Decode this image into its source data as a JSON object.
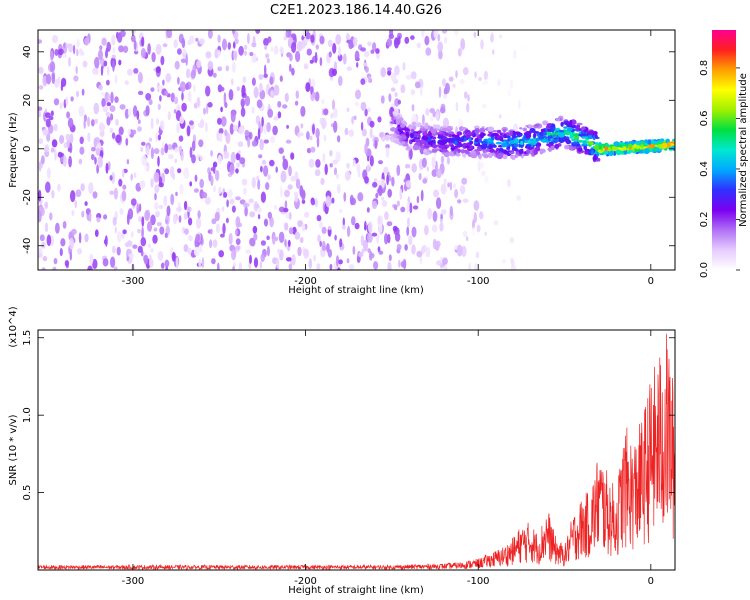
{
  "title": "C2E1.2023.186.14.40.G26",
  "chart_data": [
    {
      "type": "heatmap",
      "xlabel": "Height of straight line (km)",
      "ylabel": "Frequency (Hz)",
      "xlim": [
        -355,
        14
      ],
      "ylim": [
        -50,
        49
      ],
      "xticks": [
        -300,
        -200,
        -100,
        0
      ],
      "xtick_labels": [
        "-300",
        "-200",
        "-100",
        "0"
      ],
      "yticks": [
        40,
        20,
        0,
        -20,
        -40
      ],
      "ytick_labels": [
        "40",
        "20",
        "0",
        "-20",
        "-40"
      ],
      "colorbar": {
        "label": "Normalized spectral amplitude",
        "range": [
          0,
          0.95
        ],
        "ticks": [
          0.0,
          0.2,
          0.4,
          0.6,
          0.8
        ],
        "tick_labels": [
          "0.0",
          "0.2",
          "0.4",
          "0.6",
          "0.8"
        ],
        "colors": [
          "#ffffff",
          "#e6ccff",
          "#b070f5",
          "#7a00f0",
          "#3030ff",
          "#00a8ff",
          "#00e8d0",
          "#00e040",
          "#a0f000",
          "#ffff00",
          "#ffa000",
          "#ff2020",
          "#ff0090"
        ]
      },
      "features": {
        "noise_band_x": [
          -355,
          -140
        ],
        "noise_amplitude": 0.2,
        "signal_ridge": [
          [
            -150,
            10
          ],
          [
            -140,
            5
          ],
          [
            -120,
            3
          ],
          [
            -100,
            3
          ],
          [
            -80,
            2
          ],
          [
            -60,
            5
          ],
          [
            -50,
            7
          ],
          [
            -40,
            4
          ],
          [
            -30,
            0
          ],
          [
            -20,
            0
          ],
          [
            0,
            1
          ],
          [
            14,
            2
          ]
        ],
        "signal_peak_amplitude": 0.8
      },
      "grid": false
    },
    {
      "type": "line",
      "xlabel": "Height of straight line (km)",
      "ylabel": "SNR (10 * v/v)",
      "yunit": "(x10^4)",
      "xlim": [
        -355,
        14
      ],
      "ylim": [
        0,
        1.55
      ],
      "xticks": [
        -300,
        -200,
        -100,
        0
      ],
      "xtick_labels": [
        "-300",
        "-200",
        "-100",
        "0"
      ],
      "yticks": [
        0.5,
        1.0,
        1.5
      ],
      "ytick_labels": [
        "0.5",
        "1.0",
        "1.5"
      ],
      "series": [
        {
          "color": "#ee2222",
          "x": [
            -355,
            -300,
            -250,
            -200,
            -150,
            -120,
            -110,
            -100,
            -90,
            -85,
            -80,
            -75,
            -70,
            -65,
            -60,
            -55,
            -50,
            -45,
            -40,
            -35,
            -30,
            -25,
            -20,
            -15,
            -10,
            -5,
            0,
            5,
            10,
            14
          ],
          "y": [
            0.03,
            0.03,
            0.03,
            0.03,
            0.03,
            0.04,
            0.05,
            0.07,
            0.12,
            0.15,
            0.2,
            0.28,
            0.3,
            0.22,
            0.4,
            0.2,
            0.15,
            0.35,
            0.45,
            0.5,
            0.75,
            0.6,
            0.5,
            0.9,
            0.8,
            0.95,
            1.2,
            1.35,
            1.5,
            1.05
          ]
        }
      ],
      "grid": false
    }
  ]
}
